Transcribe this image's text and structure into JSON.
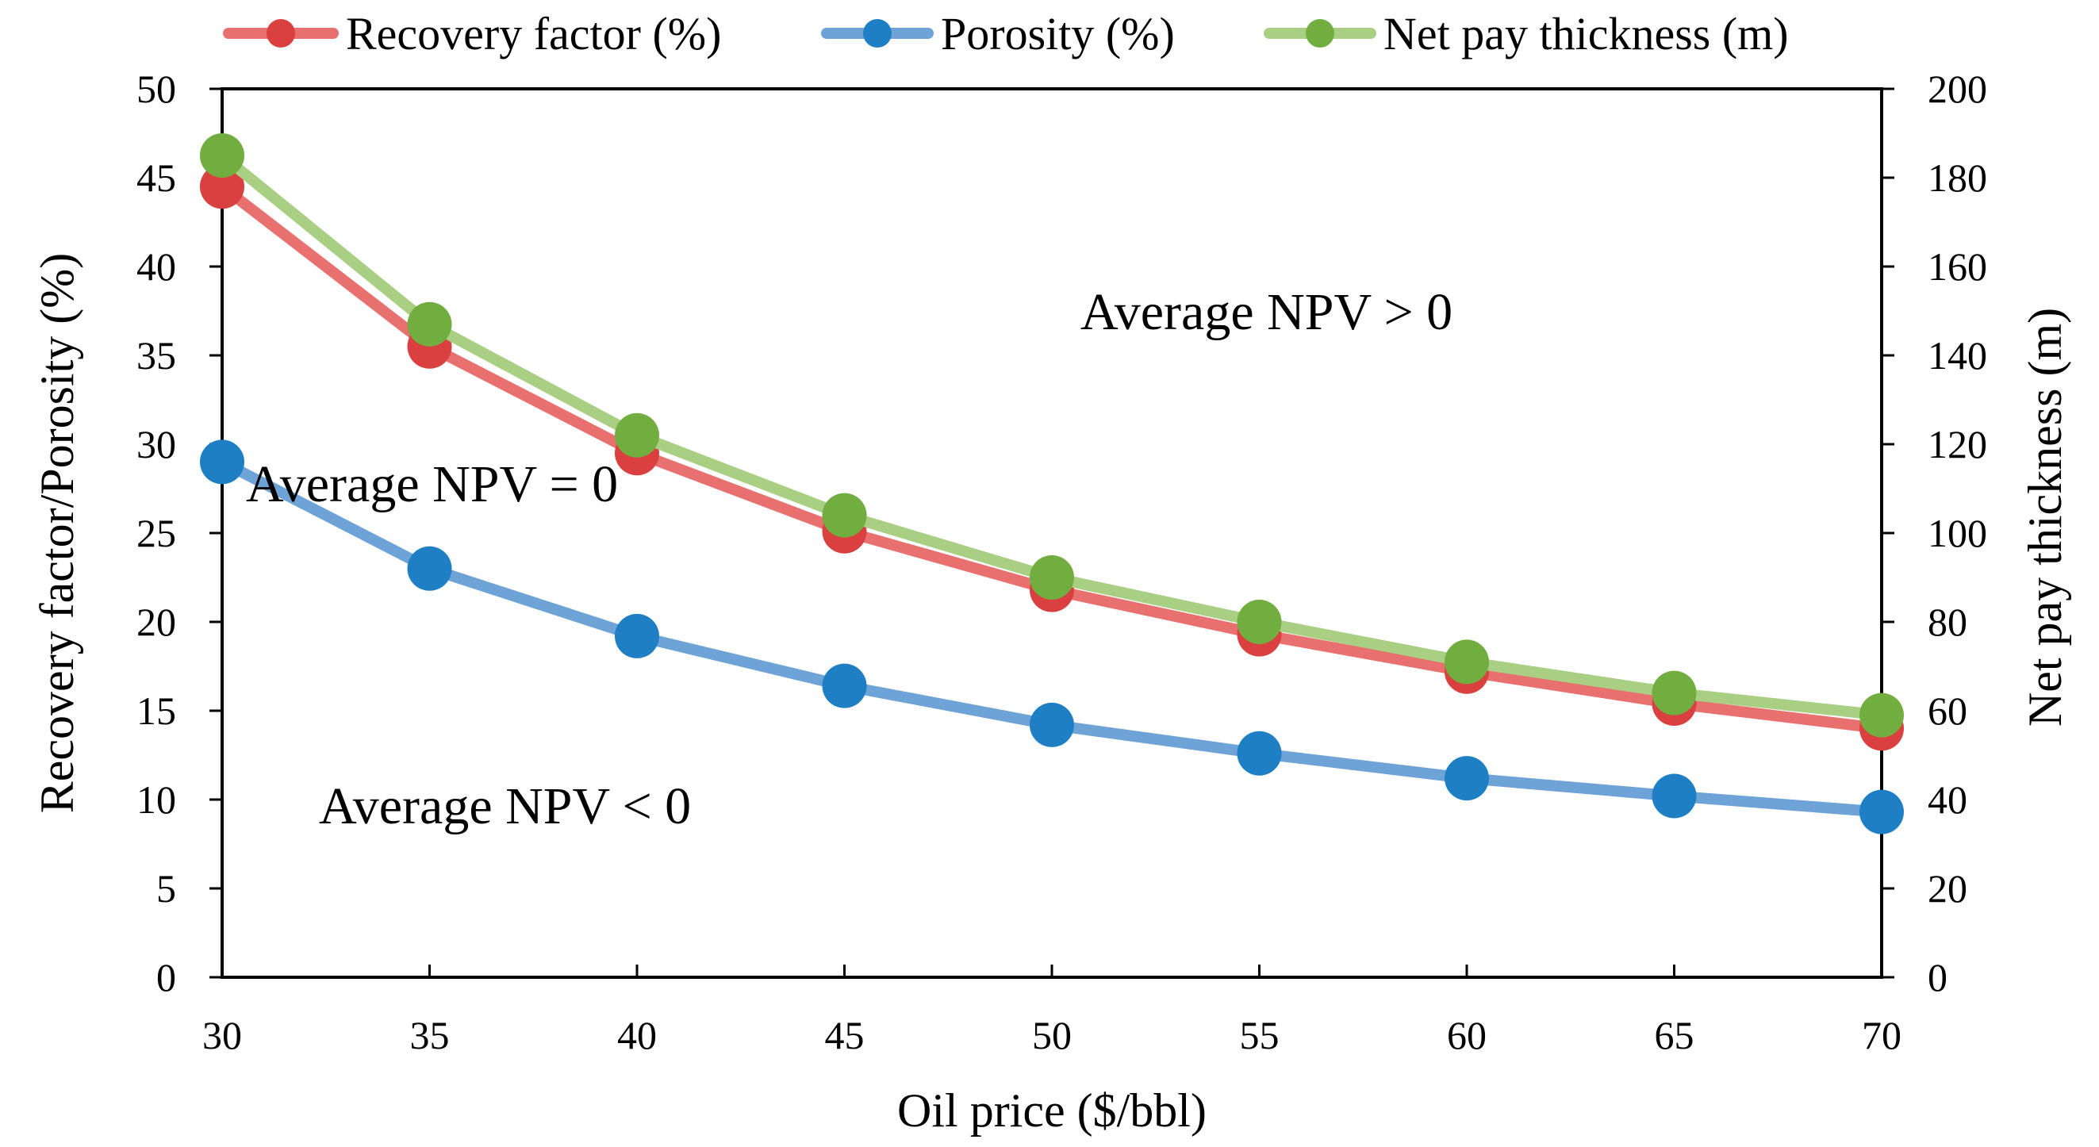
{
  "chart_data": {
    "type": "line",
    "title": "",
    "xlabel": "Oil price ($/bbl)",
    "ylabel": "Recovery factor/Porosity (%)",
    "y2label": "Net pay thickness (m)",
    "x": [
      30,
      35,
      40,
      45,
      50,
      55,
      60,
      65,
      70
    ],
    "x_tick_labels": [
      "30",
      "35",
      "40",
      "45",
      "50",
      "55",
      "60",
      "65",
      "70"
    ],
    "xlim": [
      30,
      70
    ],
    "ylim": [
      0,
      50
    ],
    "y_tick_labels": [
      "0",
      "5",
      "10",
      "15",
      "20",
      "25",
      "30",
      "35",
      "40",
      "45",
      "50"
    ],
    "y2lim": [
      0,
      200
    ],
    "y2_tick_labels": [
      "0",
      "20",
      "40",
      "60",
      "80",
      "100",
      "120",
      "140",
      "160",
      "180",
      "200"
    ],
    "grid": false,
    "legend_position": "top",
    "series": [
      {
        "name": "Recovery factor (%)",
        "axis": "left",
        "color": "#e8706f",
        "marker_color": "#d9403f",
        "values": [
          44.5,
          35.5,
          29.5,
          25.1,
          21.8,
          19.3,
          17.2,
          15.4,
          14.0
        ]
      },
      {
        "name": "Porosity (%)",
        "axis": "left",
        "color": "#6da3d6",
        "marker_color": "#1e7fc4",
        "values": [
          29.0,
          23.0,
          19.2,
          16.4,
          14.2,
          12.6,
          11.2,
          10.2,
          9.3
        ]
      },
      {
        "name": "Net pay thickness (m)",
        "axis": "right",
        "color": "#a8cf82",
        "marker_color": "#72ad3f",
        "values": [
          185,
          147,
          122,
          104,
          90,
          80,
          71,
          64,
          59
        ]
      }
    ],
    "annotations": [
      {
        "id": "npv-positive",
        "text": "Average NPV > 0"
      },
      {
        "id": "npv-zero",
        "text": "Average NPV = 0"
      },
      {
        "id": "npv-negative",
        "text": "Average NPV < 0"
      }
    ]
  }
}
